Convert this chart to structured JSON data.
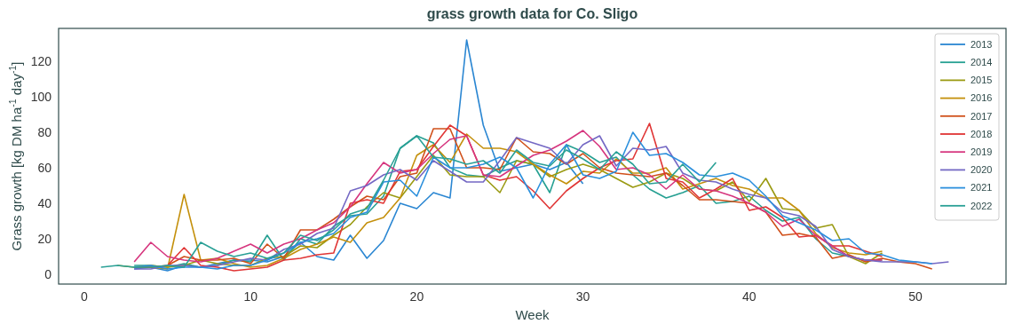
{
  "chart_data": {
    "type": "line",
    "title": "grass growth data for Co. Sligo",
    "xlabel": "Week",
    "ylabel": "Grass growth [kg DM ha$^{-1}$ day$^{-1}$]",
    "x": [
      1,
      2,
      3,
      4,
      5,
      6,
      7,
      8,
      9,
      10,
      11,
      12,
      13,
      14,
      15,
      16,
      17,
      18,
      19,
      20,
      21,
      22,
      23,
      24,
      25,
      26,
      27,
      28,
      29,
      30,
      31,
      32,
      33,
      34,
      35,
      36,
      37,
      38,
      39,
      40,
      41,
      42,
      43,
      44,
      45,
      46,
      47,
      48,
      49,
      50,
      51,
      52
    ],
    "xlim": [
      -1.55,
      55.45
    ],
    "xticks": [
      0,
      10,
      20,
      30,
      40,
      50
    ],
    "ylim": [
      -5.5,
      138.5
    ],
    "yticks": [
      0,
      20,
      40,
      60,
      80,
      100,
      120
    ],
    "grid": false,
    "legend": "top right",
    "series": [
      {
        "name": "2013",
        "color": "#2a86d2",
        "values": [
          null,
          null,
          3,
          4,
          2,
          5,
          4,
          6,
          8,
          8,
          7,
          10,
          18,
          10,
          8,
          22,
          9,
          19,
          40,
          37,
          46,
          43,
          132,
          84,
          58,
          60,
          62,
          59,
          63,
          51,
          null,
          null,
          null,
          null,
          null,
          null,
          null,
          null,
          null,
          null,
          null,
          null,
          null,
          null,
          null,
          null,
          null,
          null,
          null,
          null,
          null,
          null
        ]
      },
      {
        "name": "2014",
        "color": "#26a092",
        "values": [
          null,
          null,
          5,
          5,
          4,
          6,
          4,
          5,
          8,
          7,
          22,
          8,
          20,
          17,
          27,
          33,
          34,
          44,
          71,
          78,
          74,
          60,
          56,
          55,
          60,
          64,
          62,
          46,
          73,
          69,
          63,
          66,
          56,
          48,
          43,
          46,
          50,
          40,
          41,
          44,
          36,
          30,
          32,
          20,
          12,
          10,
          8,
          8,
          null,
          null,
          null,
          null
        ]
      },
      {
        "name": "2015",
        "color": "#9a9a12",
        "values": [
          null,
          5,
          4,
          5,
          4,
          5,
          8,
          6,
          5,
          5,
          9,
          10,
          16,
          15,
          22,
          28,
          38,
          46,
          43,
          55,
          67,
          56,
          55,
          55,
          46,
          64,
          62,
          55,
          59,
          62,
          59,
          54,
          49,
          52,
          57,
          54,
          48,
          47,
          52,
          41,
          54,
          37,
          36,
          26,
          28,
          10,
          6,
          12,
          null,
          null,
          null,
          null
        ]
      },
      {
        "name": "2016",
        "color": "#c4900c",
        "values": [
          null,
          null,
          4,
          4,
          3,
          45,
          8,
          9,
          6,
          4,
          5,
          9,
          14,
          17,
          21,
          18,
          29,
          32,
          43,
          67,
          73,
          63,
          79,
          71,
          71,
          69,
          62,
          56,
          51,
          58,
          57,
          65,
          57,
          57,
          60,
          48,
          51,
          54,
          50,
          48,
          43,
          43,
          36,
          23,
          15,
          12,
          11,
          13,
          null,
          null,
          null,
          null
        ]
      },
      {
        "name": "2017",
        "color": "#d0501a",
        "values": [
          null,
          null,
          4,
          4,
          5,
          10,
          8,
          8,
          9,
          6,
          17,
          9,
          25,
          25,
          31,
          38,
          44,
          42,
          55,
          57,
          82,
          82,
          60,
          60,
          59,
          77,
          69,
          68,
          62,
          68,
          60,
          57,
          56,
          55,
          57,
          50,
          42,
          42,
          41,
          40,
          35,
          22,
          23,
          21,
          9,
          11,
          7,
          9,
          7,
          6,
          3,
          null
        ]
      },
      {
        "name": "2018",
        "color": "#e03535",
        "values": [
          null,
          null,
          null,
          null,
          5,
          15,
          5,
          4,
          2,
          3,
          4,
          8,
          9,
          11,
          12,
          40,
          42,
          40,
          58,
          59,
          72,
          84,
          78,
          56,
          53,
          55,
          47,
          37,
          47,
          54,
          60,
          64,
          65,
          85,
          54,
          52,
          43,
          48,
          54,
          36,
          38,
          32,
          21,
          22,
          16,
          16,
          13,
          10,
          null,
          null,
          null,
          null
        ]
      },
      {
        "name": "2019",
        "color": "#d6357e",
        "values": [
          null,
          null,
          7,
          18,
          10,
          8,
          7,
          9,
          13,
          17,
          12,
          17,
          20,
          25,
          29,
          38,
          51,
          63,
          57,
          59,
          68,
          76,
          78,
          56,
          55,
          61,
          67,
          70,
          75,
          81,
          72,
          59,
          60,
          56,
          48,
          56,
          48,
          47,
          44,
          40,
          35,
          27,
          31,
          22,
          16,
          10,
          8,
          8,
          null,
          null,
          null,
          null
        ]
      },
      {
        "name": "2020",
        "color": "#7468c4",
        "values": [
          null,
          null,
          3,
          3,
          5,
          5,
          4,
          5,
          7,
          9,
          8,
          14,
          17,
          23,
          26,
          47,
          50,
          56,
          59,
          53,
          64,
          58,
          52,
          52,
          64,
          77,
          74,
          71,
          62,
          73,
          78,
          61,
          71,
          70,
          72,
          57,
          53,
          52,
          48,
          45,
          43,
          35,
          33,
          27,
          14,
          10,
          8,
          7,
          7,
          7,
          6,
          7
        ]
      },
      {
        "name": "2021",
        "color": "#2b8fdc",
        "values": [
          null,
          null,
          4,
          5,
          3,
          4,
          4,
          3,
          5,
          5,
          8,
          12,
          18,
          20,
          23,
          32,
          35,
          52,
          53,
          44,
          66,
          60,
          60,
          62,
          66,
          60,
          43,
          62,
          73,
          56,
          54,
          58,
          80,
          67,
          68,
          63,
          56,
          55,
          57,
          53,
          44,
          33,
          29,
          25,
          19,
          20,
          12,
          11,
          8,
          7,
          6,
          null
        ]
      },
      {
        "name": "2022",
        "color": "#2aa096",
        "values": [
          4,
          5,
          4,
          4,
          5,
          4,
          18,
          13,
          10,
          12,
          9,
          12,
          22,
          19,
          25,
          34,
          37,
          53,
          71,
          78,
          66,
          65,
          62,
          64,
          57,
          70,
          63,
          61,
          70,
          65,
          59,
          69,
          62,
          51,
          52,
          62,
          52,
          63,
          null,
          null,
          null,
          null,
          null,
          null,
          null,
          null,
          null,
          null,
          null,
          null,
          null,
          null
        ]
      }
    ]
  }
}
